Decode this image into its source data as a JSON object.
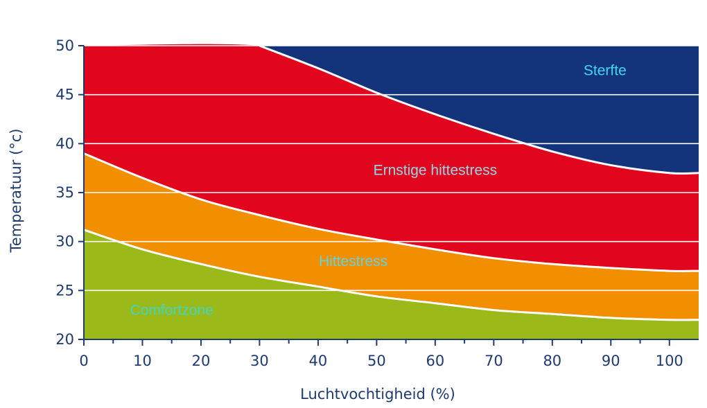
{
  "chart_data": {
    "type": "area",
    "xlabel": "Luchtvochtigheid (%)",
    "ylabel": "Temperatuur (°c)",
    "xlim": [
      0,
      105
    ],
    "ylim": [
      20,
      50
    ],
    "x_ticks": [
      0,
      10,
      20,
      30,
      40,
      50,
      60,
      70,
      80,
      90,
      100
    ],
    "y_ticks": [
      20,
      25,
      30,
      35,
      40,
      45,
      50
    ],
    "grid": true,
    "series": [
      {
        "name": "Comfortzone",
        "color": "#9bba1a",
        "label_color": "#3fd6c8",
        "label_at": [
          15,
          22.5
        ],
        "lower": [
          [
            0,
            20
          ],
          [
            105,
            20
          ]
        ],
        "upper": [
          [
            0,
            31.2
          ],
          [
            10,
            29.2
          ],
          [
            20,
            27.7
          ],
          [
            30,
            26.4
          ],
          [
            40,
            25.4
          ],
          [
            50,
            24.4
          ],
          [
            60,
            23.7
          ],
          [
            70,
            23.0
          ],
          [
            80,
            22.6
          ],
          [
            90,
            22.2
          ],
          [
            100,
            22.0
          ],
          [
            105,
            22.0
          ]
        ]
      },
      {
        "name": "Hittestress",
        "color": "#f18f00",
        "label_color": "#62d4e0",
        "label_at": [
          46,
          27.5
        ],
        "lower": [
          [
            0,
            31.2
          ],
          [
            10,
            29.2
          ],
          [
            20,
            27.7
          ],
          [
            30,
            26.4
          ],
          [
            40,
            25.4
          ],
          [
            50,
            24.4
          ],
          [
            60,
            23.7
          ],
          [
            70,
            23.0
          ],
          [
            80,
            22.6
          ],
          [
            90,
            22.2
          ],
          [
            100,
            22.0
          ],
          [
            105,
            22.0
          ]
        ],
        "upper": [
          [
            0,
            39.0
          ],
          [
            10,
            36.5
          ],
          [
            20,
            34.3
          ],
          [
            30,
            32.7
          ],
          [
            40,
            31.3
          ],
          [
            50,
            30.2
          ],
          [
            60,
            29.2
          ],
          [
            70,
            28.3
          ],
          [
            80,
            27.7
          ],
          [
            90,
            27.3
          ],
          [
            100,
            27.0
          ],
          [
            105,
            27.0
          ]
        ]
      },
      {
        "name": "Ernstige hittestress",
        "color": "#e2051e",
        "label_color": "#8fd9e8",
        "label_at": [
          60,
          36.8
        ],
        "lower": [
          [
            0,
            39.0
          ],
          [
            10,
            36.5
          ],
          [
            20,
            34.3
          ],
          [
            30,
            32.7
          ],
          [
            40,
            31.3
          ],
          [
            50,
            30.2
          ],
          [
            60,
            29.2
          ],
          [
            70,
            28.3
          ],
          [
            80,
            27.7
          ],
          [
            90,
            27.3
          ],
          [
            100,
            27.0
          ],
          [
            105,
            27.0
          ]
        ],
        "upper": [
          [
            0,
            50
          ],
          [
            30,
            50
          ],
          [
            40,
            47.7
          ],
          [
            50,
            45.2
          ],
          [
            60,
            43.0
          ],
          [
            70,
            41.0
          ],
          [
            80,
            39.2
          ],
          [
            90,
            37.8
          ],
          [
            100,
            37.0
          ],
          [
            105,
            37.0
          ]
        ]
      },
      {
        "name": "Sterfte",
        "color": "#13347a",
        "label_color": "#3fd8f0",
        "label_at": [
          89,
          47
        ],
        "lower": [
          [
            30,
            50
          ],
          [
            40,
            47.7
          ],
          [
            50,
            45.2
          ],
          [
            60,
            43.0
          ],
          [
            70,
            41.0
          ],
          [
            80,
            39.2
          ],
          [
            90,
            37.8
          ],
          [
            100,
            37.0
          ],
          [
            105,
            37.0
          ]
        ],
        "upper": [
          [
            30,
            50
          ],
          [
            105,
            50
          ]
        ]
      }
    ]
  }
}
